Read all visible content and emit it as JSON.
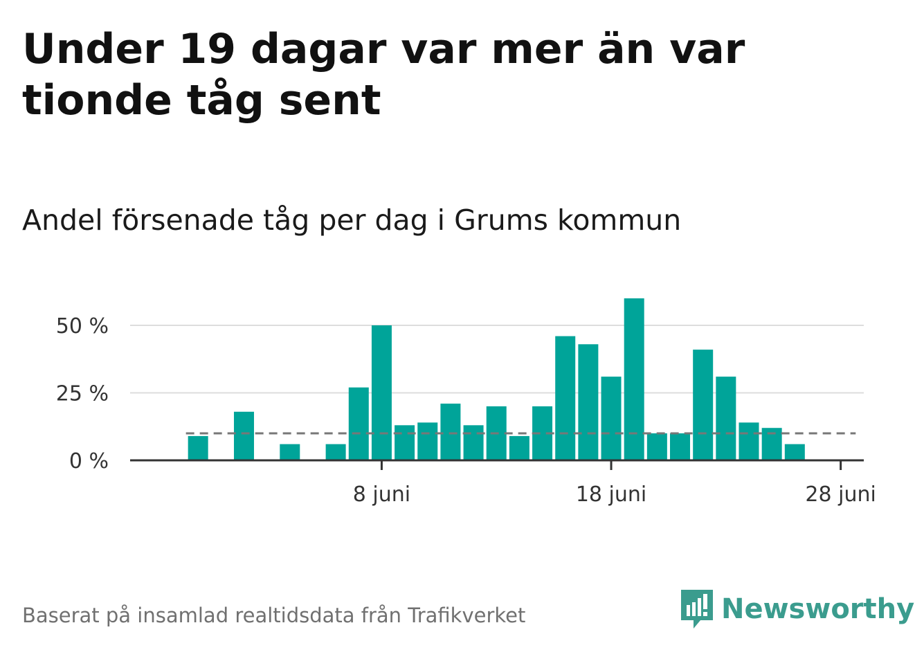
{
  "title": "Under 19 dagar var mer än var tionde tåg sent",
  "subtitle": "Andel försenade tåg per dag i Grums kommun",
  "footer": "Baserat på insamlad realtidsdata från Trafikverket",
  "logo_text": "Newsworthy",
  "colors": {
    "bar": "#00a499",
    "reference": "#777777",
    "grid": "#dddddd",
    "axis": "#333333",
    "logo": "#3b9c8e"
  },
  "chart_data": {
    "type": "bar",
    "x": [
      "2024-05-30",
      "2024-05-31",
      "2024-06-01",
      "2024-06-02",
      "2024-06-03",
      "2024-06-04",
      "2024-06-05",
      "2024-06-06",
      "2024-06-07",
      "2024-06-08",
      "2024-06-09",
      "2024-06-10",
      "2024-06-11",
      "2024-06-12",
      "2024-06-13",
      "2024-06-14",
      "2024-06-15",
      "2024-06-16",
      "2024-06-17",
      "2024-06-18",
      "2024-06-19",
      "2024-06-20",
      "2024-06-21",
      "2024-06-22",
      "2024-06-23",
      "2024-06-24",
      "2024-06-25",
      "2024-06-26",
      "2024-06-27",
      "2024-06-28",
      "2024-06-29"
    ],
    "values": [
      null,
      9,
      null,
      18,
      null,
      6,
      null,
      6,
      27,
      50,
      13,
      14,
      21,
      13,
      20,
      9,
      20,
      46,
      43,
      31,
      60,
      10,
      10,
      41,
      31,
      14,
      12,
      6,
      null,
      null,
      null
    ],
    "reference_line": 10,
    "ylim": [
      0,
      60
    ],
    "yticks": [
      0,
      25,
      50
    ],
    "ytick_labels": [
      "0 %",
      "25 %",
      "50 %"
    ],
    "xticks": [
      "2024-06-08",
      "2024-06-18",
      "2024-06-28"
    ],
    "xtick_labels": [
      "8 juni",
      "18 juni",
      "28 juni"
    ],
    "grid": true,
    "legend": "none"
  }
}
